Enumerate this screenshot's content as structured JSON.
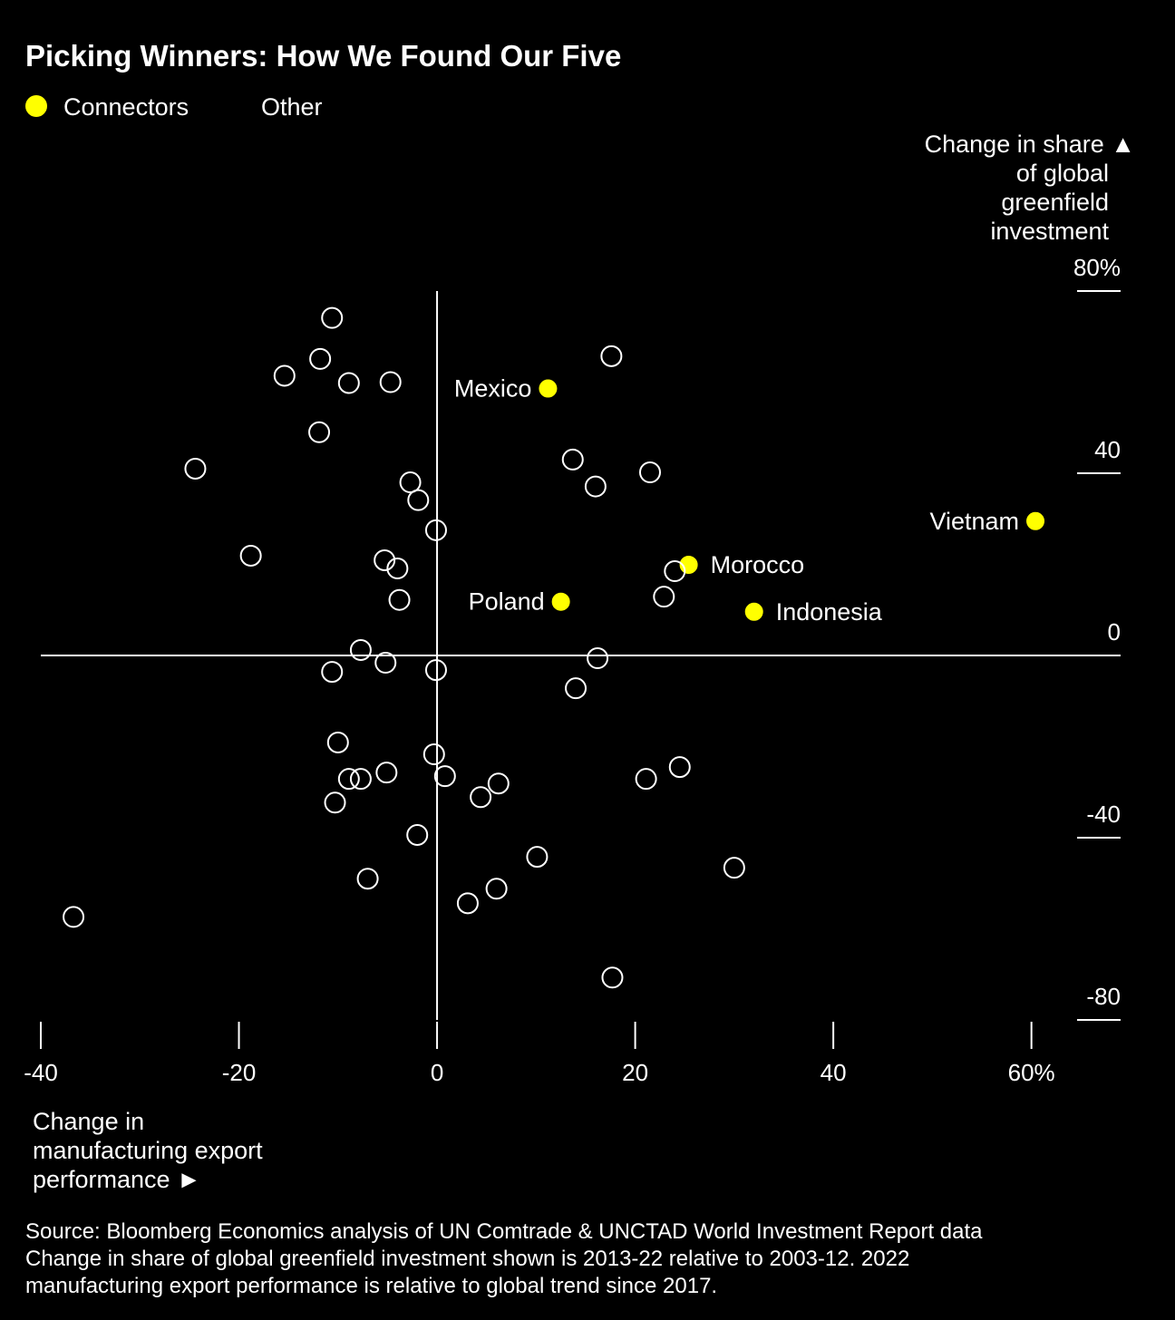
{
  "chart_data": {
    "type": "scatter",
    "title": "Picking Winners: How We Found Our Five",
    "y_label": [
      "Change in share ▲",
      "of global",
      "greenfield",
      "investment"
    ],
    "x_label": [
      "Change in",
      "manufacturing export",
      "performance ►"
    ],
    "source": "Source: Bloomberg Economics analysis of UN Comtrade & UNCTAD World Investment Report data",
    "note": [
      "Change in share of global greenfield investment shown is 2013-22 relative to 2003-12. 2022",
      "manufacturing export performance is relative to global trend since 2017."
    ],
    "xlim": [
      -40,
      69
    ],
    "ylim": [
      -80,
      80
    ],
    "xticks": [
      -40,
      -20,
      0,
      20,
      40,
      {
        "value": 60,
        "label": "60%"
      }
    ],
    "yticks": [
      {
        "value": 80,
        "label": "80%"
      },
      40,
      0,
      -40,
      -80
    ],
    "series": [
      {
        "name": "Connectors",
        "color": "#ffff00",
        "labels": [
          "Mexico",
          "Vietnam",
          "Morocco",
          "Poland",
          "Indonesia"
        ],
        "x": [
          11.2,
          60.4,
          25.4,
          12.5,
          32.0
        ],
        "y": [
          58.6,
          29.5,
          19.9,
          11.8,
          9.6
        ]
      },
      {
        "name": "Other",
        "color": "#ffffff",
        "x": [
          -10.6,
          17.6,
          -11.8,
          -15.4,
          -8.9,
          -4.7,
          -11.9,
          -24.4,
          13.7,
          21.5,
          -2.7,
          16.0,
          -1.9,
          -0.1,
          -18.8,
          -5.3,
          -4.0,
          24.0,
          22.9,
          -3.8,
          -7.7,
          16.2,
          -5.2,
          -10.6,
          -0.1,
          14.0,
          -10.0,
          -0.3,
          -5.1,
          -8.9,
          -7.7,
          0.8,
          6.2,
          21.1,
          24.5,
          -10.3,
          4.4,
          -2.0,
          10.1,
          30.0,
          -7.0,
          6.0,
          3.1,
          -36.7,
          17.7
        ],
        "y": [
          74.1,
          65.7,
          65.1,
          61.4,
          59.8,
          60.0,
          49.0,
          41.0,
          43.0,
          40.2,
          38.0,
          37.1,
          34.1,
          27.5,
          21.9,
          20.9,
          19.1,
          18.5,
          12.9,
          12.2,
          1.2,
          -0.6,
          -1.6,
          -3.6,
          -3.2,
          -7.2,
          -19.1,
          -21.7,
          -25.7,
          -27.1,
          -27.1,
          -26.5,
          -28.1,
          -27.1,
          -24.5,
          -32.3,
          -31.1,
          -39.4,
          -44.2,
          -46.6,
          -49.0,
          -51.2,
          -54.4,
          -57.4,
          -70.7
        ]
      }
    ]
  }
}
